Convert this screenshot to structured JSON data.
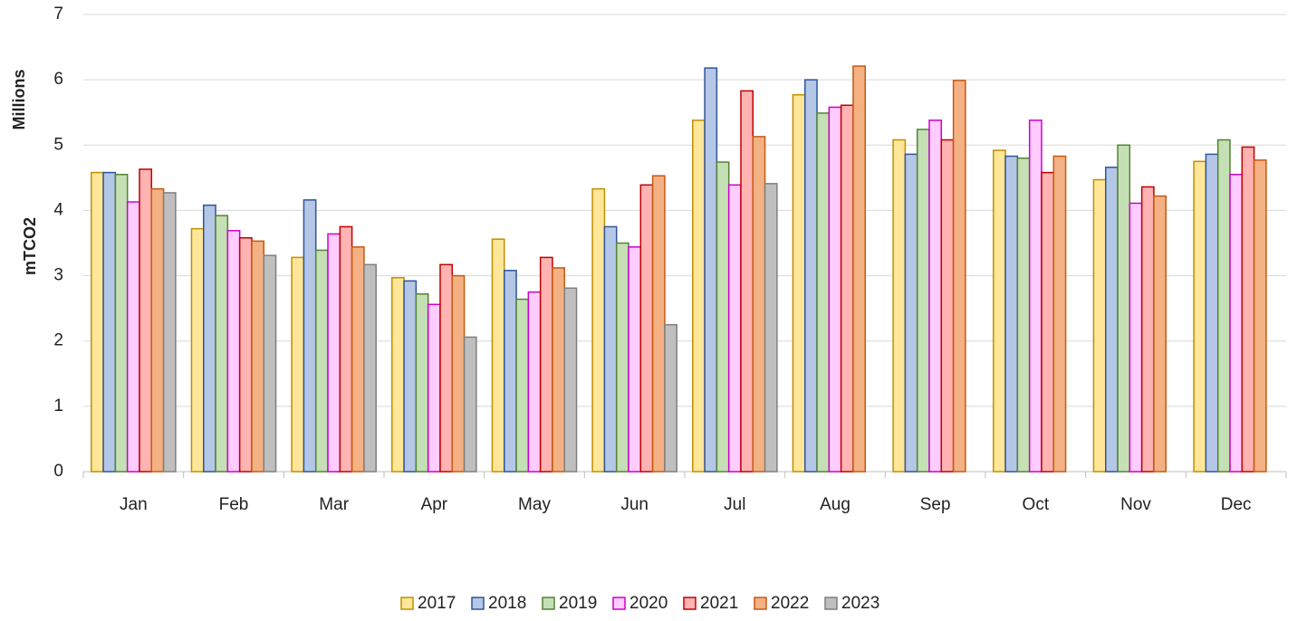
{
  "chart_data": {
    "type": "bar",
    "y_label": "mTCO2",
    "y_unit_label": "Millions",
    "categories": [
      "Jan",
      "Feb",
      "Mar",
      "Apr",
      "May",
      "Jun",
      "Jul",
      "Aug",
      "Sep",
      "Oct",
      "Nov",
      "Dec"
    ],
    "series": [
      {
        "name": "2017",
        "color": "#ffe699",
        "edge": "#bf9000",
        "values": [
          4.58,
          3.72,
          3.28,
          2.97,
          3.56,
          4.33,
          5.38,
          5.77,
          5.08,
          4.92,
          4.47,
          4.75
        ]
      },
      {
        "name": "2018",
        "color": "#b4c7e7",
        "edge": "#2f5597",
        "values": [
          4.58,
          4.08,
          4.16,
          2.92,
          3.08,
          3.75,
          6.18,
          6.0,
          4.86,
          4.83,
          4.66,
          4.86
        ]
      },
      {
        "name": "2019",
        "color": "#c5e0b4",
        "edge": "#548235",
        "values": [
          4.55,
          3.92,
          3.39,
          2.72,
          2.64,
          3.5,
          4.74,
          5.49,
          5.24,
          4.8,
          5.0,
          5.08
        ]
      },
      {
        "name": "2020",
        "color": "#ffccff",
        "edge": "#cc00cc",
        "values": [
          4.13,
          3.69,
          3.64,
          2.56,
          2.75,
          3.44,
          4.39,
          5.58,
          5.38,
          5.38,
          4.11,
          4.55
        ]
      },
      {
        "name": "2021",
        "color": "#ffb3b3",
        "edge": "#c00000",
        "values": [
          4.63,
          3.58,
          3.75,
          3.17,
          3.28,
          4.39,
          5.83,
          5.61,
          5.08,
          4.58,
          4.36,
          4.97
        ]
      },
      {
        "name": "2022",
        "color": "#f4b183",
        "edge": "#c55a11",
        "values": [
          4.33,
          3.53,
          3.44,
          3.0,
          3.12,
          4.53,
          5.13,
          6.21,
          5.99,
          4.83,
          4.22,
          4.77
        ]
      },
      {
        "name": "2023",
        "color": "#bfbfbf",
        "edge": "#7f7f7f",
        "values": [
          4.27,
          3.31,
          3.17,
          2.06,
          2.81,
          2.25,
          4.41,
          null,
          null,
          null,
          null,
          null
        ]
      }
    ],
    "ylim": [
      0,
      7
    ],
    "yticks": [
      0,
      1,
      2,
      3,
      4,
      5,
      6,
      7
    ],
    "grid": true,
    "legend": "bottom"
  }
}
